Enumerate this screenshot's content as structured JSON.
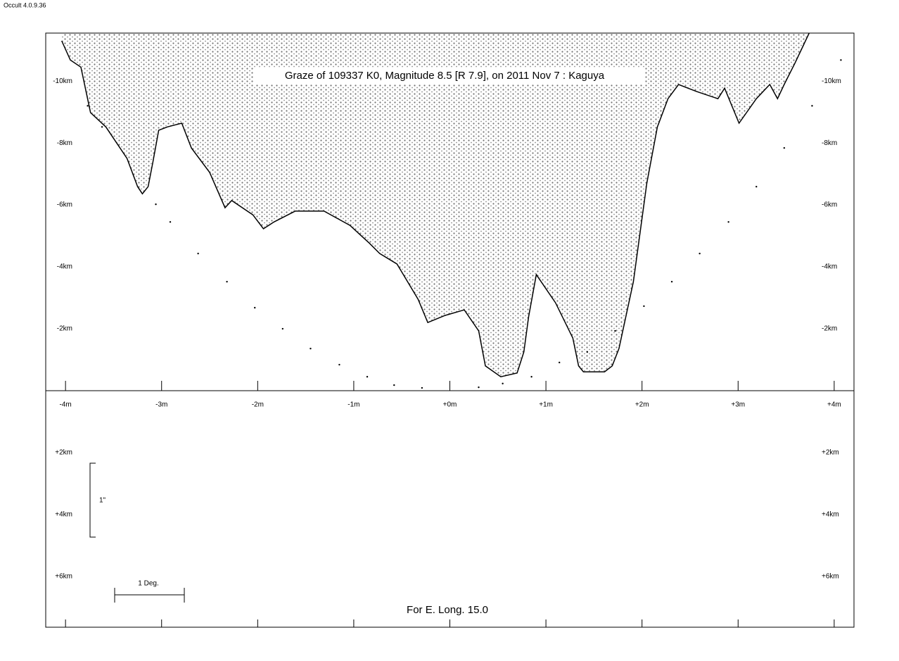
{
  "app_label": "Occult 4.0.9.36",
  "chart_data": {
    "type": "line",
    "title": "Graze of  109337 K0,  Magnitude 8.5 [R 7.9],  on 2011 Nov  7  :  Kaguya",
    "footer": "For E. Long. 15.0",
    "scale_labels": {
      "vertical": "1\"",
      "horizontal": "1 Deg."
    },
    "xlim": [
      -4.206,
      4.206
    ],
    "ylim": [
      -11.55,
      7.64
    ],
    "xticks": [
      {
        "value": -4,
        "label": "-4m"
      },
      {
        "value": -3,
        "label": "-3m"
      },
      {
        "value": -2,
        "label": "-2m"
      },
      {
        "value": -1,
        "label": "-1m"
      },
      {
        "value": 0,
        "label": "+0m"
      },
      {
        "value": 1,
        "label": "+1m"
      },
      {
        "value": 2,
        "label": "+2m"
      },
      {
        "value": 3,
        "label": "+3m"
      },
      {
        "value": 4,
        "label": "+4m"
      }
    ],
    "yticks": [
      {
        "value": -10,
        "label": "-10km"
      },
      {
        "value": -8,
        "label": "-8km"
      },
      {
        "value": -6,
        "label": "-6km"
      },
      {
        "value": -4,
        "label": "-4km"
      },
      {
        "value": -2,
        "label": "-2km"
      },
      {
        "value": 2,
        "label": "+2km"
      },
      {
        "value": 4,
        "label": "+4km"
      },
      {
        "value": 6,
        "label": "+6km"
      }
    ],
    "series": [
      {
        "color": "#000000",
        "style": "line",
        "x": [
          -4.04,
          -3.95,
          -3.84,
          -3.74,
          -3.58,
          -3.36,
          -3.25,
          -3.2,
          -3.14,
          -3.09,
          -3.03,
          -2.94,
          -2.79,
          -2.69,
          -2.5,
          -2.34,
          -2.27,
          -2.05,
          -1.94,
          -1.83,
          -1.61,
          -1.31,
          -1.04,
          -0.84,
          -0.73,
          -0.55,
          -0.33,
          -0.23,
          -0.05,
          0.15,
          0.3,
          0.37,
          0.53,
          0.7,
          0.77,
          0.82,
          0.9,
          1.1,
          1.28,
          1.34,
          1.39,
          1.61,
          1.69,
          1.76,
          1.91,
          2.05,
          2.16,
          2.27,
          2.38,
          2.57,
          2.79,
          2.86,
          3.01,
          3.19,
          3.33,
          3.41,
          3.48,
          3.59,
          3.74
        ],
        "values": [
          -11.3,
          -10.68,
          -10.45,
          -8.98,
          -8.52,
          -7.5,
          -6.59,
          -6.36,
          -6.59,
          -7.39,
          -8.41,
          -8.52,
          -8.64,
          -7.84,
          -7.05,
          -5.91,
          -6.14,
          -5.68,
          -5.23,
          -5.45,
          -5.8,
          -5.8,
          -5.34,
          -4.77,
          -4.43,
          -4.09,
          -2.95,
          -2.2,
          -2.43,
          -2.61,
          -1.93,
          -0.8,
          -0.45,
          -0.57,
          -1.25,
          -2.39,
          -3.75,
          -2.84,
          -1.7,
          -0.8,
          -0.61,
          -0.61,
          -0.8,
          -1.36,
          -3.52,
          -6.7,
          -8.52,
          -9.43,
          -9.89,
          -9.66,
          -9.43,
          -9.77,
          -8.64,
          -9.43,
          -9.89,
          -9.43,
          -9.89,
          -10.57,
          -11.55
        ]
      },
      {
        "color": "#000000",
        "style": "dots",
        "x": [
          -3.77,
          -3.62,
          -3.06,
          -2.91,
          -2.62,
          -2.32,
          -2.03,
          -1.74,
          -1.45,
          -1.15,
          -0.86,
          -0.58,
          -0.29,
          0.3,
          0.55,
          0.85,
          1.14,
          1.43,
          1.72,
          2.02,
          2.31,
          2.6,
          2.9,
          3.19,
          3.48,
          3.77,
          4.07
        ],
        "values": [
          -9.2,
          -8.52,
          -6.02,
          -5.45,
          -4.43,
          -3.52,
          -2.68,
          -2.0,
          -1.36,
          -0.84,
          -0.45,
          -0.18,
          -0.09,
          -0.11,
          -0.23,
          -0.45,
          -0.91,
          -1.25,
          -1.93,
          -2.73,
          -3.52,
          -4.43,
          -5.45,
          -6.59,
          -7.84,
          -9.2,
          -10.68
        ]
      }
    ]
  }
}
